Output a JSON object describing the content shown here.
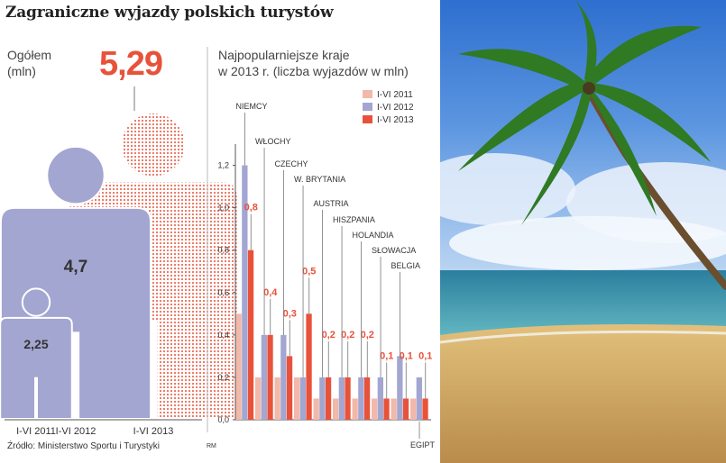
{
  "title": "Zagraniczne wyjazdy polskich turystów",
  "total": {
    "label_line1": "Ogółem",
    "label_line2": "(mln)",
    "headline_value": "5,29",
    "figures": [
      {
        "period": "I-VI 2011",
        "value": 2.25,
        "label": "2,25"
      },
      {
        "period": "I-VI 2012",
        "value": 4.7,
        "label": "4,7"
      },
      {
        "period": "I-VI 2013",
        "value": 5.29,
        "label": "5,29"
      }
    ]
  },
  "panel": {
    "title_line1": "Najpopularniejsze kraje",
    "title_line2": "w 2013 r. (liczba wyjazdów w mln)"
  },
  "source": "Źródło: Ministerstwo Sportu i Turystyki",
  "credit": "RM",
  "colors": {
    "accent": "#e8523a",
    "series_2011": "#f2b8aa",
    "series_2012": "#a3a6d1",
    "series_2013": "#e8523a",
    "leader": "#777777"
  },
  "chart_data": [
    {
      "type": "bar",
      "title": "Ogółem (mln)",
      "categories": [
        "I-VI 2011",
        "I-VI 2012",
        "I-VI 2013"
      ],
      "values": [
        2.25,
        4.7,
        5.29
      ],
      "data_labels": [
        "2,25",
        "4,7",
        "5,29"
      ]
    },
    {
      "type": "bar",
      "title": "Najpopularniejsze kraje w 2013 r. (liczba wyjazdów w mln)",
      "categories": [
        "NIEMCY",
        "WŁOCHY",
        "CZECHY",
        "W. BRYTANIA",
        "AUSTRIA",
        "HISZPANIA",
        "HOLANDIA",
        "SŁOWACJA",
        "BELGIA",
        "EGIPT"
      ],
      "series": [
        {
          "name": "I-VI 2011",
          "values": [
            0.5,
            0.2,
            0.2,
            0.2,
            0.1,
            0.1,
            0.1,
            0.1,
            0.1,
            0.1
          ]
        },
        {
          "name": "I-VI 2012",
          "values": [
            1.2,
            0.4,
            0.4,
            0.2,
            0.2,
            0.2,
            0.2,
            0.2,
            0.3,
            0.2
          ]
        },
        {
          "name": "I-VI 2013",
          "values": [
            0.8,
            0.4,
            0.3,
            0.5,
            0.2,
            0.2,
            0.2,
            0.1,
            0.1,
            0.1
          ]
        }
      ],
      "data_labels_2013": [
        "0,8",
        "0,4",
        "0,3",
        "0,5",
        "0,2",
        "0,2",
        "0,2",
        "0,1",
        "0,1",
        "0,1"
      ],
      "ylim": [
        0,
        1.3
      ],
      "yticks": [
        "0,0",
        "0,2",
        "0,4",
        "0,6",
        "0,8",
        "1,0",
        "1,2"
      ],
      "legend": "top-right",
      "grid": false
    }
  ]
}
